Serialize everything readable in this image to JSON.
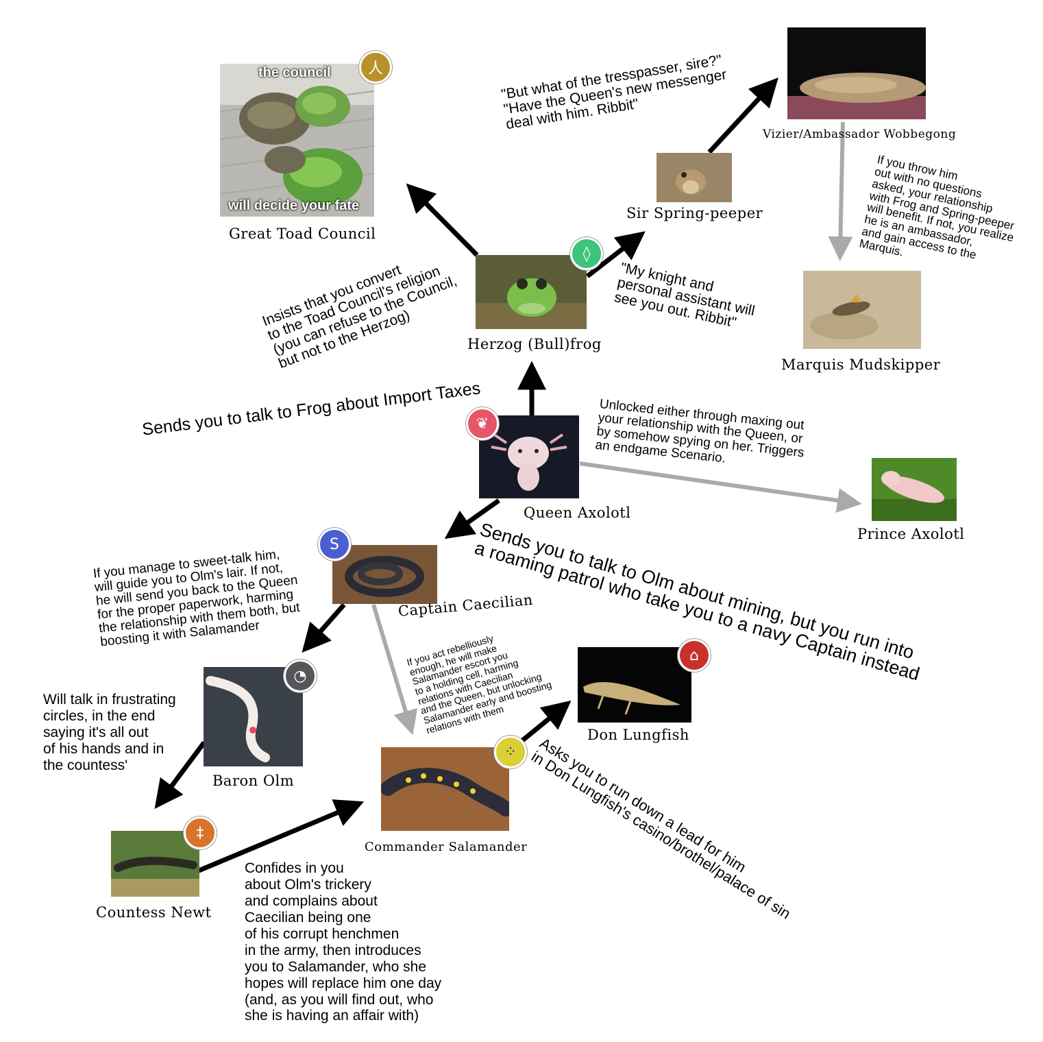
{
  "colors": {
    "primary_arrow": "#000000",
    "secondary_arrow": "#aaaaaa"
  },
  "nodes": {
    "council": {
      "name": "Great Toad Council",
      "meme_top": "the council",
      "meme_bottom": "will decide your fate",
      "badge_color": "#b8912a",
      "badge_icon": "person-icon"
    },
    "herzog": {
      "name": "Herzog (Bull)frog",
      "badge_color": "#3cc47a",
      "badge_icon": "leaf-icon"
    },
    "peeper": {
      "name": "Sir Spring-peeper"
    },
    "wobbegong": {
      "name": "Vizier/Ambassador Wobbegong"
    },
    "mudskipper": {
      "name": "Marquis Mudskipper"
    },
    "axolotl": {
      "name": "Queen Axolotl",
      "badge_color": "#e5566a",
      "badge_icon": "heart-icon"
    },
    "prince": {
      "name": "Prince Axolotl"
    },
    "caecilian": {
      "name": "Captain Caecilian",
      "badge_color": "#4a5fd0",
      "badge_icon": "swirl-icon"
    },
    "olm": {
      "name": "Baron Olm",
      "badge_color": "#55555a",
      "badge_icon": "spiral-icon"
    },
    "lungfish": {
      "name": "Don Lungfish",
      "badge_color": "#c8302c",
      "badge_icon": "arch-icon"
    },
    "salamander": {
      "name": "Commander  Salamander",
      "badge_color": "#d8d035",
      "badge_icon": "dots-icon"
    },
    "newt": {
      "name": "Countess Newt",
      "badge_color": "#d9742a",
      "badge_icon": "figure-icon"
    }
  },
  "notes": {
    "council_convert": "Insists that you convert\nto the Toad Council's religion\n(you can refuse to the Council,\nbut not to the Herzog)",
    "trespasser": "\"But what of the tresspasser, sire?\"\n\"Have the Queen's new messenger\ndeal with him. Ribbit\"",
    "knight": "\"My knight and\npersonal assistant will\nsee you out. Ribbit\"",
    "throw_out": "If you throw him\nout with no questions\nasked, your relationship\nwith Frog and Spring-peeper\nwill benefit. If not, you realize\nhe is an ambassador,\nand gain access to the\nMarquis.",
    "import_taxes": "Sends you to talk to Frog about Import Taxes",
    "unlocked": "Unlocked either through maxing out\nyour relationship with the Queen, or\nby somehow spying on her. Triggers\nan endgame Scenario.",
    "mining": "Sends you to talk to Olm about mining, but you run into\na roaming patrol who take you to a navy Captain instead",
    "sweet_talk": "If you manage to sweet-talk him,\nwill guide you to Olm's lair. If not,\nhe will send you back to the Queen\nfor the proper paperwork, harming\nthe relationship with them both, but\nboosting it with Salamander",
    "rebellious": "If you act rebelliously\nenough, he will make\nSalamander escort you\nto a holding cell, harming\nrelations with Caecilian\nand the Queen, but unlocking\nSalamander early and boosting\nrelations with them",
    "frustrating": "Will talk in frustrating\ncircles, in the end\nsaying it's all out\nof his hands and in\nthe countess'",
    "lead": "Asks you to run down a lead for him\nin Don Lungfish's casino/brothel/palace of sin",
    "confides": "Confides in you\nabout Olm's trickery\nand complains about\nCaecilian being one\nof his corrupt henchmen\nin the army, then introduces\nyou to Salamander, who she\nhopes will replace him one day\n(and, as you will find out, who\nshe is having an affair with)"
  }
}
